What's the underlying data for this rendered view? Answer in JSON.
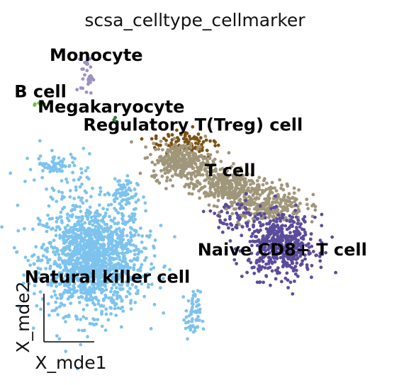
{
  "chart_data": {
    "type": "scatter",
    "title": "scsa_celltype_cellmarker",
    "xlabel": "X_mde1",
    "ylabel": "X_mde2",
    "grid": false,
    "legend": "on data",
    "xlim": [
      0,
      100
    ],
    "ylim": [
      0,
      100
    ],
    "series": [
      {
        "name": "Monocyte",
        "color": "#9e91c5",
        "clusters": [
          {
            "x": 20.5,
            "y": 89,
            "sx": 0.8,
            "sy": 3,
            "n": 30
          }
        ]
      },
      {
        "name": "B cell",
        "color": "#6fbe4a",
        "clusters": [
          {
            "x": 8,
            "y": 80,
            "sx": 1,
            "sy": 0.6,
            "n": 6
          }
        ]
      },
      {
        "name": "Megakaryocyte",
        "color": "#2e7d3c",
        "clusters": [
          {
            "x": 29,
            "y": 74,
            "sx": 1.5,
            "sy": 1.2,
            "n": 6
          }
        ]
      },
      {
        "name": "Regulatory T(Treg) cell",
        "color": "#7b5214",
        "clusters": [
          {
            "x": 47,
            "y": 67,
            "sx": 4.5,
            "sy": 2.5,
            "n": 90
          }
        ]
      },
      {
        "name": "T cell",
        "color": "#a0967a",
        "clusters": [
          {
            "x": 46,
            "y": 61,
            "sx": 4,
            "sy": 3,
            "n": 300
          },
          {
            "x": 57,
            "y": 53,
            "sx": 4.5,
            "sy": 3,
            "n": 300
          },
          {
            "x": 69,
            "y": 47,
            "sx": 5,
            "sy": 3.5,
            "n": 300
          }
        ]
      },
      {
        "name": "Naive CD8+ T cell",
        "color": "#5b4c9b",
        "clusters": [
          {
            "x": 73,
            "y": 33,
            "sx": 4.5,
            "sy": 5,
            "n": 500
          },
          {
            "x": 60,
            "y": 42,
            "sx": 4,
            "sy": 3,
            "n": 60
          }
        ]
      },
      {
        "name": "Natural killer cell",
        "color": "#7dc3ee",
        "clusters": [
          {
            "x": 22,
            "y": 29,
            "sx": 7,
            "sy": 9,
            "n": 1400
          },
          {
            "x": 12,
            "y": 60,
            "sx": 2.5,
            "sy": 1.5,
            "n": 60
          },
          {
            "x": 30,
            "y": 50,
            "sx": 2,
            "sy": 3,
            "n": 60
          },
          {
            "x": 49,
            "y": 10,
            "sx": 1,
            "sy": 4,
            "n": 60
          },
          {
            "x": 15,
            "y": 55,
            "sx": 8,
            "sy": 6,
            "n": 40
          }
        ]
      }
    ],
    "labels": [
      {
        "text": "Monocyte",
        "x": 23,
        "y": 94
      },
      {
        "text": "B cell",
        "x": 8,
        "y": 82
      },
      {
        "text": "Megakaryocyte",
        "x": 27,
        "y": 77
      },
      {
        "text": "Regulatory T(Treg) cell",
        "x": 49,
        "y": 71
      },
      {
        "text": "T cell",
        "x": 59,
        "y": 56
      },
      {
        "text": "Naive CD8+ T cell",
        "x": 73,
        "y": 30
      },
      {
        "text": "Natural killer cell",
        "x": 26,
        "y": 21
      }
    ]
  }
}
